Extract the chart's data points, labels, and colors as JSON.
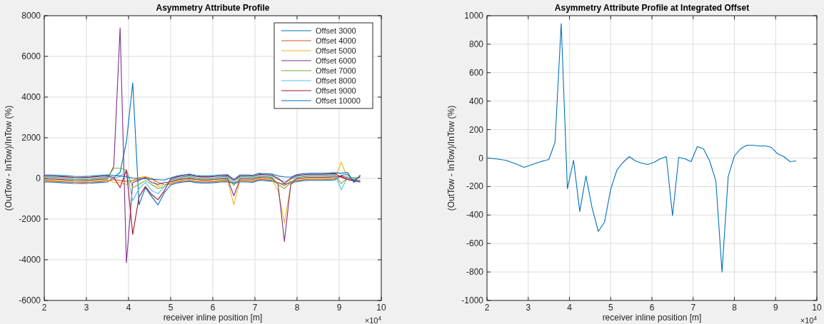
{
  "chart_data": [
    {
      "type": "line",
      "title": "Asymmetry Attribute Profile",
      "xlabel": "receiver inline position [m]",
      "ylabel": "(OutTow - InTow)/InTow (%)",
      "annotations": [
        "×10$^{4}$"
      ],
      "xlim": [
        2,
        10
      ],
      "ylim": [
        -6000,
        8000
      ],
      "xticks": [
        2,
        3,
        4,
        5,
        6,
        7,
        8,
        9,
        10
      ],
      "yticks": [
        -6000,
        -4000,
        -2000,
        0,
        2000,
        4000,
        6000,
        8000
      ],
      "grid": true,
      "legend": "top right",
      "x": [
        2,
        2.2,
        2.45,
        2.7,
        2.9,
        3.1,
        3.3,
        3.5,
        3.65,
        3.8,
        3.95,
        4.1,
        4.25,
        4.4,
        4.55,
        4.7,
        4.85,
        5,
        5.15,
        5.3,
        5.45,
        5.6,
        5.75,
        5.9,
        6.05,
        6.2,
        6.35,
        6.5,
        6.65,
        6.8,
        6.95,
        7.1,
        7.25,
        7.4,
        7.55,
        7.7,
        7.85,
        8,
        8.15,
        8.3,
        8.45,
        8.6,
        8.75,
        8.9,
        9.05,
        9.2,
        9.35,
        9.5
      ],
      "series": [
        {
          "name": "Offset 3000",
          "color": "#0072bd",
          "values": [
            -175,
            -185,
            -215,
            -245,
            -255,
            -235,
            -205,
            -175,
            50,
            300,
            1800,
            4700,
            -1300,
            -450,
            -900,
            -1300,
            -700,
            -325,
            -225,
            -175,
            -145,
            -205,
            -225,
            -225,
            -205,
            -175,
            -165,
            -250,
            -175,
            -175,
            -195,
            -95,
            -115,
            -135,
            -230,
            -280,
            -230,
            -155,
            -115,
            -95,
            -95,
            -95,
            -85,
            -75,
            150,
            200,
            -150,
            -175
          ]
        },
        {
          "name": "Offset 4000",
          "color": "#d95319",
          "values": [
            -125,
            -135,
            -165,
            -195,
            -205,
            -185,
            -155,
            -125,
            -60,
            -100,
            -150,
            -100,
            -50,
            50,
            0,
            -200,
            -300,
            -275,
            -175,
            -125,
            -95,
            -155,
            -175,
            -175,
            -155,
            -125,
            -115,
            -200,
            -125,
            -125,
            -145,
            -45,
            -65,
            -85,
            -200,
            -350,
            -150,
            -105,
            -65,
            -45,
            -45,
            -45,
            -35,
            -25,
            100,
            -50,
            -100,
            -125
          ]
        },
        {
          "name": "Offset 5000",
          "color": "#edb120",
          "values": [
            -75,
            -85,
            -115,
            -145,
            -155,
            -135,
            -105,
            -75,
            -200,
            -200,
            -300,
            -100,
            40,
            100,
            0,
            -400,
            -300,
            -225,
            -125,
            -75,
            -45,
            -105,
            -125,
            -125,
            -105,
            -75,
            -65,
            -1300,
            -75,
            -75,
            -95,
            5,
            -15,
            -35,
            -600,
            -2200,
            -300,
            -55,
            -15,
            5,
            5,
            5,
            15,
            25,
            800,
            0,
            -50,
            -75
          ]
        },
        {
          "name": "Offset 6000",
          "color": "#7e2f8e",
          "values": [
            -25,
            -35,
            -65,
            -95,
            -105,
            -85,
            -55,
            -25,
            600,
            7400,
            -4150,
            -200,
            -100,
            50,
            -200,
            -300,
            -200,
            -175,
            -75,
            -25,
            5,
            -55,
            -75,
            -75,
            -55,
            -25,
            -15,
            -850,
            -25,
            -25,
            -45,
            55,
            35,
            15,
            -300,
            -3100,
            -300,
            -5,
            35,
            55,
            55,
            55,
            65,
            75,
            120,
            30,
            -80,
            -150
          ]
        },
        {
          "name": "Offset 7000",
          "color": "#77ac30",
          "values": [
            25,
            15,
            -15,
            -45,
            -55,
            -35,
            -5,
            25,
            500,
            500,
            400,
            -450,
            -300,
            -100,
            -300,
            -500,
            -400,
            -125,
            -25,
            25,
            55,
            -5,
            -25,
            -25,
            -5,
            25,
            35,
            -350,
            25,
            25,
            5,
            105,
            85,
            65,
            -300,
            -500,
            -200,
            45,
            85,
            105,
            105,
            105,
            115,
            125,
            -250,
            20,
            40,
            25
          ]
        },
        {
          "name": "Offset 8000",
          "color": "#4dbeee",
          "values": [
            75,
            65,
            35,
            5,
            -5,
            15,
            45,
            75,
            0,
            100,
            350,
            -1100,
            -500,
            -200,
            -600,
            -750,
            -400,
            -75,
            25,
            75,
            105,
            45,
            25,
            25,
            45,
            75,
            85,
            -200,
            75,
            75,
            55,
            155,
            135,
            115,
            -50,
            -150,
            -50,
            95,
            135,
            155,
            155,
            155,
            165,
            175,
            -550,
            60,
            -20,
            75
          ]
        },
        {
          "name": "Offset 9000",
          "color": "#a2142f",
          "values": [
            125,
            115,
            85,
            55,
            45,
            65,
            95,
            125,
            50,
            -450,
            400,
            -2750,
            -900,
            -400,
            -800,
            -1050,
            -600,
            -25,
            75,
            125,
            155,
            95,
            75,
            75,
            95,
            125,
            135,
            -100,
            125,
            125,
            105,
            205,
            185,
            165,
            0,
            -250,
            0,
            145,
            185,
            205,
            205,
            205,
            215,
            225,
            60,
            -60,
            -120,
            125
          ]
        },
        {
          "name": "Offset 10000",
          "color": "#0072bd",
          "values": [
            175,
            165,
            135,
            105,
            95,
            115,
            145,
            175,
            150,
            120,
            80,
            20,
            0,
            -20,
            -40,
            -60,
            -80,
            25,
            125,
            175,
            205,
            145,
            125,
            125,
            145,
            175,
            185,
            -50,
            175,
            175,
            155,
            255,
            235,
            215,
            120,
            80,
            60,
            195,
            235,
            255,
            255,
            255,
            265,
            275,
            250,
            300,
            -200,
            175
          ]
        }
      ]
    },
    {
      "type": "line",
      "title": "Asymmetry Attribute Profile at Integrated Offset",
      "xlabel": "receiver inline position [m]",
      "ylabel": "(OutTow - InTow)/InTow (%)",
      "annotations": [
        "×10$^{4}$"
      ],
      "xlim": [
        2,
        10
      ],
      "ylim": [
        -1000,
        1000
      ],
      "xticks": [
        2,
        3,
        4,
        5,
        6,
        7,
        8,
        9,
        10
      ],
      "yticks": [
        -1000,
        -800,
        -600,
        -400,
        -200,
        0,
        200,
        400,
        600,
        800,
        1000
      ],
      "grid": true,
      "x": [
        2,
        2.2,
        2.45,
        2.7,
        2.9,
        3.1,
        3.3,
        3.5,
        3.65,
        3.8,
        3.95,
        4.1,
        4.25,
        4.4,
        4.55,
        4.7,
        4.85,
        5,
        5.15,
        5.3,
        5.45,
        5.6,
        5.75,
        5.9,
        6.05,
        6.2,
        6.35,
        6.5,
        6.65,
        6.8,
        6.95,
        7.1,
        7.25,
        7.4,
        7.55,
        7.7,
        7.85,
        8,
        8.15,
        8.3,
        8.45,
        8.6,
        8.75,
        8.9,
        9.05,
        9.2,
        9.35,
        9.5
      ],
      "series": [
        {
          "color": "#0072bd",
          "values": [
            0,
            -5,
            -15,
            -40,
            -65,
            -45,
            -25,
            -10,
            110,
            945,
            -215,
            -15,
            -375,
            -125,
            -350,
            -515,
            -450,
            -220,
            -85,
            -30,
            10,
            -20,
            -35,
            -45,
            -30,
            -5,
            10,
            -405,
            5,
            -5,
            -25,
            80,
            65,
            -20,
            -160,
            -800,
            -130,
            15,
            65,
            90,
            90,
            85,
            85,
            75,
            30,
            10,
            -25,
            -20
          ]
        }
      ]
    }
  ]
}
